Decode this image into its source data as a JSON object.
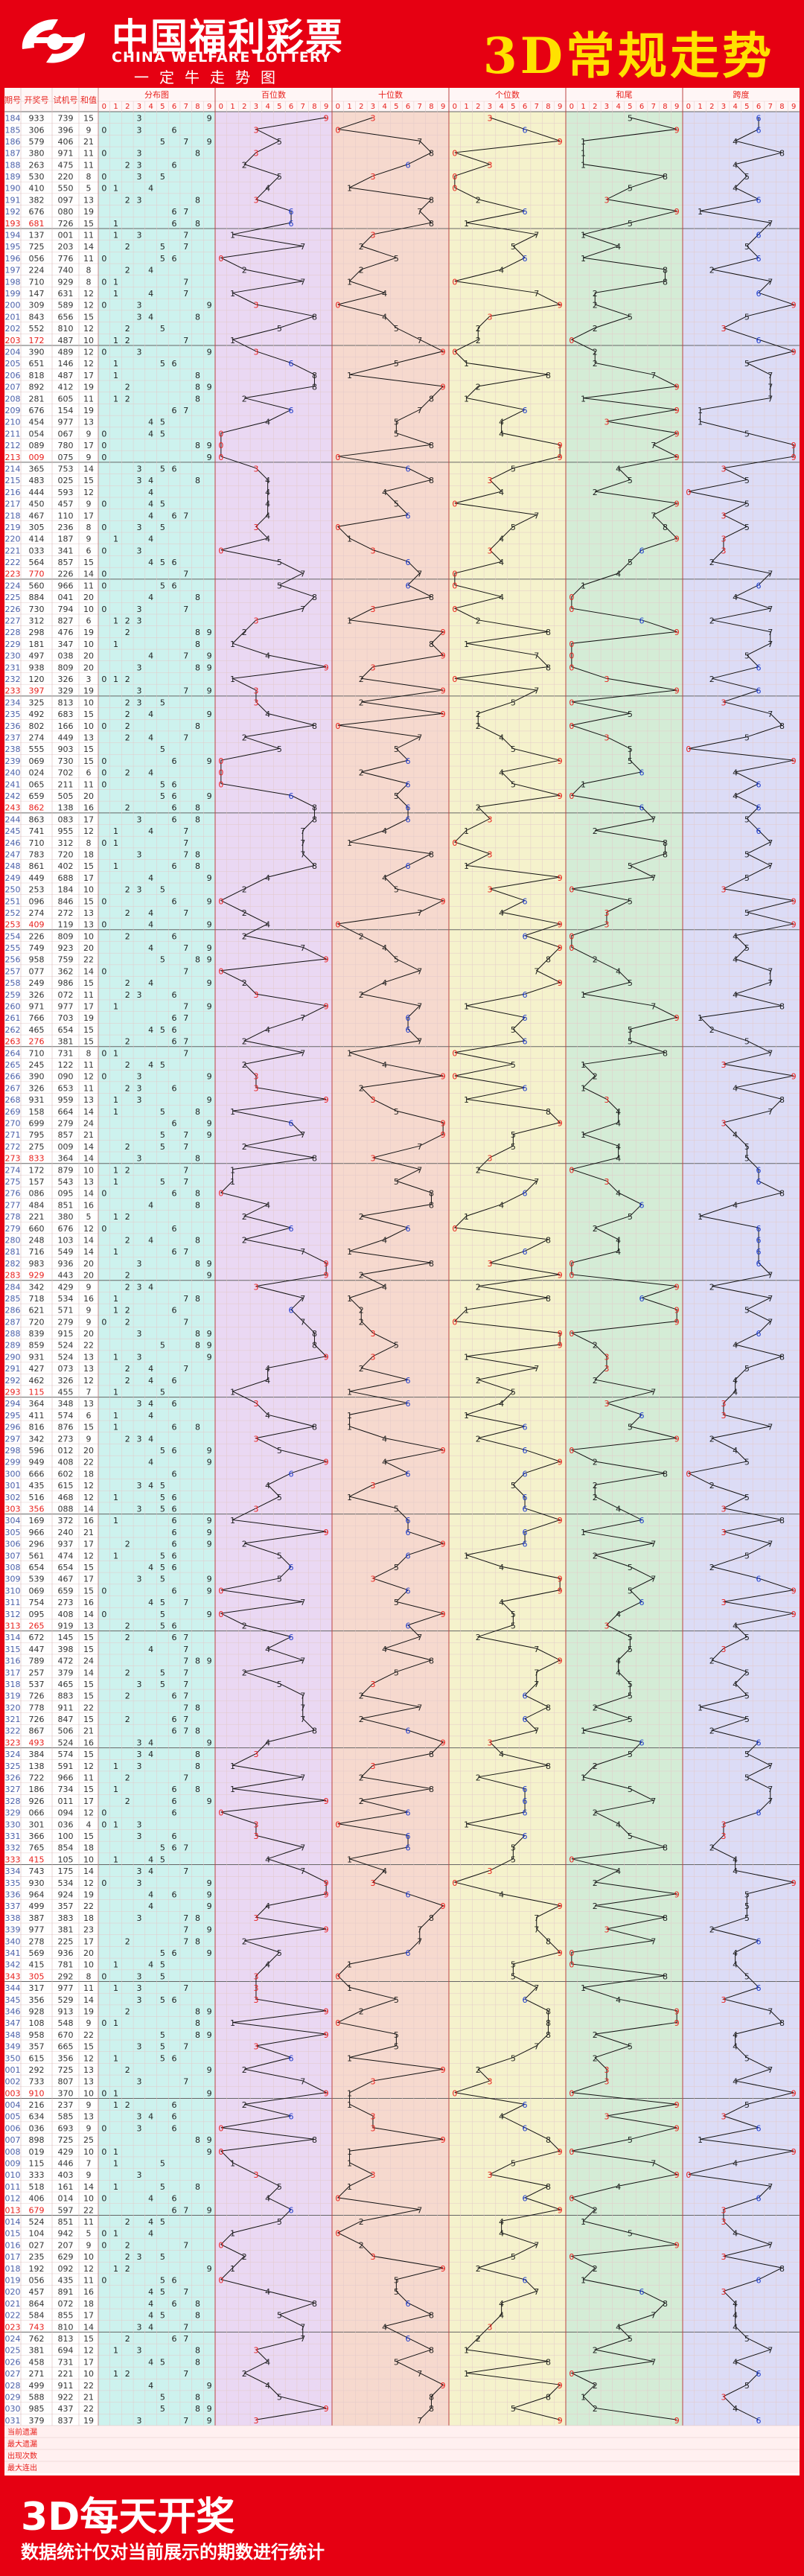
{
  "header": {
    "logo_cn": "中国福利彩票",
    "logo_en": "CHINA WELFARE LOTTERY",
    "logo_slogan": "一定牛走势图",
    "title": "3D常规走势"
  },
  "footer": {
    "title": "3D每天开奖",
    "note": "数据统计仅对当前展示的期数进行统计"
  },
  "colors": {
    "brand_red": "#e60012",
    "title_yellow": "#ffe100",
    "hit_red": "#e8201c",
    "hit_blue": "#1e3ccc",
    "section_tint": [
      "#cdf2ee",
      "#ead8f3",
      "#f6d9ce",
      "#f5f2cc",
      "#d4ecd6",
      "#dcdcf6"
    ]
  },
  "stats_labels": [
    "当前遗漏",
    "最大遗漏",
    "出现次数",
    "最大连出"
  ],
  "chart_data": {
    "type": "table",
    "columns": [
      "期号",
      "开奖号",
      "试机号",
      "和值"
    ],
    "section_titles": [
      "分布图",
      "百位数",
      "十位数",
      "个位数",
      "和尾",
      "跨度"
    ],
    "digit_headers": [
      "0",
      "1",
      "2",
      "3",
      "4",
      "5",
      "6",
      "7",
      "8",
      "9"
    ],
    "rows": [
      [
        "184",
        "933",
        "739",
        "15"
      ],
      [
        "185",
        "306",
        "396",
        "9"
      ],
      [
        "186",
        "579",
        "406",
        "21"
      ],
      [
        "187",
        "380",
        "971",
        "11"
      ],
      [
        "188",
        "263",
        "475",
        "11"
      ],
      [
        "189",
        "530",
        "220",
        "8"
      ],
      [
        "190",
        "410",
        "550",
        "5"
      ],
      [
        "191",
        "382",
        "097",
        "13"
      ],
      [
        "192",
        "676",
        "080",
        "19"
      ],
      [
        "193",
        "681",
        "726",
        "15"
      ],
      [
        "194",
        "137",
        "001",
        "11"
      ],
      [
        "195",
        "725",
        "203",
        "14"
      ],
      [
        "196",
        "056",
        "776",
        "11"
      ],
      [
        "197",
        "224",
        "740",
        "8"
      ],
      [
        "198",
        "710",
        "929",
        "8"
      ],
      [
        "199",
        "147",
        "631",
        "12"
      ],
      [
        "200",
        "309",
        "589",
        "12"
      ],
      [
        "201",
        "843",
        "656",
        "15"
      ],
      [
        "202",
        "552",
        "810",
        "12"
      ],
      [
        "203",
        "172",
        "487",
        "10"
      ],
      [
        "204",
        "390",
        "489",
        "12"
      ],
      [
        "205",
        "651",
        "146",
        "12"
      ],
      [
        "206",
        "818",
        "487",
        "17"
      ],
      [
        "207",
        "892",
        "412",
        "19"
      ],
      [
        "208",
        "281",
        "605",
        "11"
      ],
      [
        "209",
        "676",
        "154",
        "19"
      ],
      [
        "210",
        "454",
        "977",
        "13"
      ],
      [
        "211",
        "054",
        "067",
        "9"
      ],
      [
        "212",
        "089",
        "780",
        "17"
      ],
      [
        "213",
        "009",
        "075",
        "9"
      ],
      [
        "214",
        "365",
        "753",
        "14"
      ],
      [
        "215",
        "483",
        "025",
        "15"
      ],
      [
        "216",
        "444",
        "593",
        "12"
      ],
      [
        "217",
        "450",
        "457",
        "9"
      ],
      [
        "218",
        "467",
        "110",
        "17"
      ],
      [
        "219",
        "305",
        "236",
        "8"
      ],
      [
        "220",
        "414",
        "187",
        "9"
      ],
      [
        "221",
        "033",
        "341",
        "6"
      ],
      [
        "222",
        "564",
        "857",
        "15"
      ],
      [
        "223",
        "770",
        "226",
        "14"
      ],
      [
        "224",
        "560",
        "966",
        "11"
      ],
      [
        "225",
        "884",
        "041",
        "20"
      ],
      [
        "226",
        "730",
        "794",
        "10"
      ],
      [
        "227",
        "312",
        "827",
        "6"
      ],
      [
        "228",
        "298",
        "476",
        "19"
      ],
      [
        "229",
        "181",
        "347",
        "10"
      ],
      [
        "230",
        "497",
        "038",
        "20"
      ],
      [
        "231",
        "938",
        "809",
        "20"
      ],
      [
        "232",
        "120",
        "326",
        "3"
      ],
      [
        "233",
        "397",
        "329",
        "19"
      ],
      [
        "234",
        "325",
        "813",
        "10"
      ],
      [
        "235",
        "492",
        "683",
        "15"
      ],
      [
        "236",
        "802",
        "166",
        "10"
      ],
      [
        "237",
        "274",
        "449",
        "13"
      ],
      [
        "238",
        "555",
        "903",
        "15"
      ],
      [
        "239",
        "069",
        "730",
        "15"
      ],
      [
        "240",
        "024",
        "702",
        "6"
      ],
      [
        "241",
        "065",
        "211",
        "11"
      ],
      [
        "242",
        "659",
        "505",
        "20"
      ],
      [
        "243",
        "862",
        "138",
        "16"
      ],
      [
        "244",
        "863",
        "083",
        "17"
      ],
      [
        "245",
        "741",
        "955",
        "12"
      ],
      [
        "246",
        "710",
        "312",
        "8"
      ],
      [
        "247",
        "783",
        "720",
        "18"
      ],
      [
        "248",
        "861",
        "402",
        "15"
      ],
      [
        "249",
        "449",
        "688",
        "17"
      ],
      [
        "250",
        "253",
        "184",
        "10"
      ],
      [
        "251",
        "096",
        "846",
        "15"
      ],
      [
        "252",
        "274",
        "272",
        "13"
      ],
      [
        "253",
        "409",
        "119",
        "13"
      ],
      [
        "254",
        "226",
        "809",
        "10"
      ],
      [
        "255",
        "749",
        "923",
        "20"
      ],
      [
        "256",
        "958",
        "759",
        "22"
      ],
      [
        "257",
        "077",
        "362",
        "14"
      ],
      [
        "258",
        "249",
        "986",
        "15"
      ],
      [
        "259",
        "326",
        "072",
        "11"
      ],
      [
        "260",
        "971",
        "977",
        "17"
      ],
      [
        "261",
        "766",
        "703",
        "19"
      ],
      [
        "262",
        "465",
        "654",
        "15"
      ],
      [
        "263",
        "276",
        "381",
        "15"
      ],
      [
        "264",
        "710",
        "731",
        "8"
      ],
      [
        "265",
        "245",
        "122",
        "11"
      ],
      [
        "266",
        "390",
        "090",
        "12"
      ],
      [
        "267",
        "326",
        "653",
        "11"
      ],
      [
        "268",
        "931",
        "959",
        "13"
      ],
      [
        "269",
        "158",
        "664",
        "14"
      ],
      [
        "270",
        "699",
        "279",
        "24"
      ],
      [
        "271",
        "795",
        "857",
        "21"
      ],
      [
        "272",
        "275",
        "009",
        "14"
      ],
      [
        "273",
        "833",
        "364",
        "14"
      ],
      [
        "274",
        "172",
        "879",
        "10"
      ],
      [
        "275",
        "157",
        "543",
        "13"
      ],
      [
        "276",
        "086",
        "095",
        "14"
      ],
      [
        "277",
        "484",
        "851",
        "16"
      ],
      [
        "278",
        "221",
        "380",
        "5"
      ],
      [
        "279",
        "660",
        "676",
        "12"
      ],
      [
        "280",
        "248",
        "103",
        "14"
      ],
      [
        "281",
        "716",
        "549",
        "14"
      ],
      [
        "282",
        "983",
        "936",
        "20"
      ],
      [
        "283",
        "929",
        "443",
        "20"
      ],
      [
        "284",
        "342",
        "429",
        "9"
      ],
      [
        "285",
        "718",
        "534",
        "16"
      ],
      [
        "286",
        "621",
        "571",
        "9"
      ],
      [
        "287",
        "720",
        "279",
        "9"
      ],
      [
        "288",
        "839",
        "915",
        "20"
      ],
      [
        "289",
        "859",
        "524",
        "22"
      ],
      [
        "290",
        "931",
        "524",
        "13"
      ],
      [
        "291",
        "427",
        "073",
        "13"
      ],
      [
        "292",
        "462",
        "326",
        "12"
      ],
      [
        "293",
        "115",
        "455",
        "7"
      ],
      [
        "294",
        "364",
        "348",
        "13"
      ],
      [
        "295",
        "411",
        "574",
        "6"
      ],
      [
        "296",
        "816",
        "876",
        "15"
      ],
      [
        "297",
        "342",
        "273",
        "9"
      ],
      [
        "298",
        "596",
        "012",
        "20"
      ],
      [
        "299",
        "949",
        "408",
        "22"
      ],
      [
        "300",
        "666",
        "602",
        "18"
      ],
      [
        "301",
        "435",
        "615",
        "12"
      ],
      [
        "302",
        "516",
        "468",
        "12"
      ],
      [
        "303",
        "356",
        "088",
        "14"
      ],
      [
        "304",
        "169",
        "372",
        "16"
      ],
      [
        "305",
        "966",
        "240",
        "21"
      ],
      [
        "306",
        "296",
        "937",
        "17"
      ],
      [
        "307",
        "561",
        "474",
        "12"
      ],
      [
        "308",
        "654",
        "654",
        "15"
      ],
      [
        "309",
        "539",
        "467",
        "17"
      ],
      [
        "310",
        "069",
        "659",
        "15"
      ],
      [
        "311",
        "754",
        "273",
        "16"
      ],
      [
        "312",
        "095",
        "408",
        "14"
      ],
      [
        "313",
        "265",
        "919",
        "13"
      ],
      [
        "314",
        "672",
        "145",
        "15"
      ],
      [
        "315",
        "447",
        "398",
        "15"
      ],
      [
        "316",
        "789",
        "472",
        "24"
      ],
      [
        "317",
        "257",
        "379",
        "14"
      ],
      [
        "318",
        "537",
        "465",
        "15"
      ],
      [
        "319",
        "726",
        "883",
        "15"
      ],
      [
        "320",
        "778",
        "911",
        "22"
      ],
      [
        "321",
        "726",
        "847",
        "15"
      ],
      [
        "322",
        "867",
        "506",
        "21"
      ],
      [
        "323",
        "493",
        "524",
        "16"
      ],
      [
        "324",
        "384",
        "574",
        "15"
      ],
      [
        "325",
        "138",
        "591",
        "12"
      ],
      [
        "326",
        "722",
        "966",
        "11"
      ],
      [
        "327",
        "186",
        "734",
        "15"
      ],
      [
        "328",
        "926",
        "011",
        "17"
      ],
      [
        "329",
        "066",
        "094",
        "12"
      ],
      [
        "330",
        "301",
        "036",
        "4"
      ],
      [
        "331",
        "366",
        "100",
        "15"
      ],
      [
        "332",
        "765",
        "854",
        "18"
      ],
      [
        "333",
        "415",
        "105",
        "10"
      ],
      [
        "334",
        "743",
        "175",
        "14"
      ],
      [
        "335",
        "930",
        "534",
        "12"
      ],
      [
        "336",
        "964",
        "924",
        "19"
      ],
      [
        "337",
        "499",
        "357",
        "22"
      ],
      [
        "338",
        "387",
        "383",
        "18"
      ],
      [
        "339",
        "977",
        "381",
        "23"
      ],
      [
        "340",
        "278",
        "225",
        "17"
      ],
      [
        "341",
        "569",
        "936",
        "20"
      ],
      [
        "342",
        "415",
        "781",
        "10"
      ],
      [
        "343",
        "305",
        "292",
        "8"
      ],
      [
        "344",
        "317",
        "977",
        "11"
      ],
      [
        "345",
        "356",
        "529",
        "14"
      ],
      [
        "346",
        "928",
        "913",
        "19"
      ],
      [
        "347",
        "108",
        "548",
        "9"
      ],
      [
        "348",
        "958",
        "670",
        "22"
      ],
      [
        "349",
        "357",
        "665",
        "15"
      ],
      [
        "350",
        "615",
        "356",
        "12"
      ],
      [
        "001",
        "292",
        "725",
        "13"
      ],
      [
        "002",
        "733",
        "807",
        "13"
      ],
      [
        "003",
        "910",
        "370",
        "10"
      ],
      [
        "004",
        "216",
        "237",
        "9"
      ],
      [
        "005",
        "634",
        "585",
        "13"
      ],
      [
        "006",
        "036",
        "693",
        "9"
      ],
      [
        "007",
        "898",
        "725",
        "25"
      ],
      [
        "008",
        "019",
        "429",
        "10"
      ],
      [
        "009",
        "115",
        "446",
        "7"
      ],
      [
        "010",
        "333",
        "403",
        "9"
      ],
      [
        "011",
        "518",
        "161",
        "14"
      ],
      [
        "012",
        "406",
        "014",
        "10"
      ],
      [
        "013",
        "679",
        "597",
        "22"
      ],
      [
        "014",
        "524",
        "851",
        "11"
      ],
      [
        "015",
        "104",
        "942",
        "5"
      ],
      [
        "016",
        "027",
        "207",
        "9"
      ],
      [
        "017",
        "235",
        "629",
        "10"
      ],
      [
        "018",
        "192",
        "092",
        "12"
      ],
      [
        "019",
        "056",
        "435",
        "11"
      ],
      [
        "020",
        "457",
        "891",
        "16"
      ],
      [
        "021",
        "864",
        "072",
        "18"
      ],
      [
        "022",
        "584",
        "855",
        "17"
      ],
      [
        "023",
        "743",
        "810",
        "14"
      ],
      [
        "024",
        "762",
        "813",
        "15"
      ],
      [
        "025",
        "381",
        "694",
        "12"
      ],
      [
        "026",
        "458",
        "731",
        "17"
      ],
      [
        "027",
        "271",
        "221",
        "10"
      ],
      [
        "028",
        "499",
        "911",
        "22"
      ],
      [
        "029",
        "588",
        "922",
        "21"
      ],
      [
        "030",
        "985",
        "437",
        "22"
      ],
      [
        "031",
        "379",
        "837",
        "19"
      ]
    ]
  }
}
